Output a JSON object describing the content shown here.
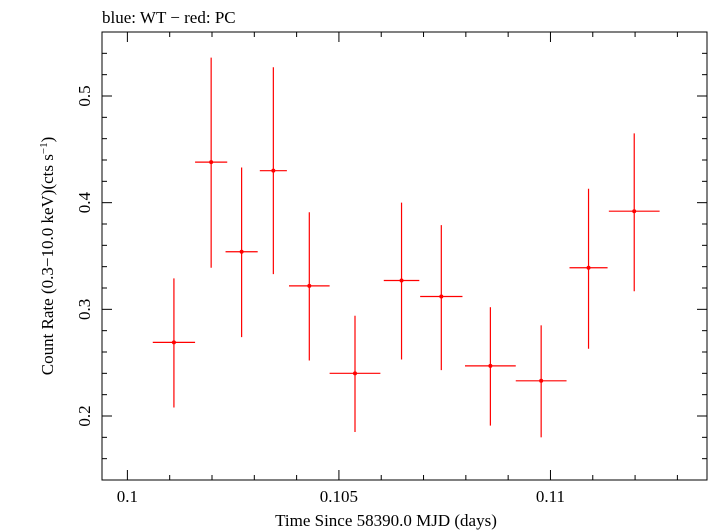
{
  "chart_data": {
    "type": "scatter",
    "title": "blue: WT − red: PC",
    "xlabel": "Time Since 58390.0 MJD (days)",
    "ylabel_parts": {
      "main": "Count Rate (0.3−10.0 keV)(cts s",
      "sup": "−1",
      "close": ")"
    },
    "xlim": [
      0.0994,
      0.1137
    ],
    "ylim": [
      0.14,
      0.56
    ],
    "x_ticks": [
      {
        "value": 0.1,
        "label": "0.1"
      },
      {
        "value": 0.105,
        "label": "0.105"
      },
      {
        "value": 0.11,
        "label": "0.11"
      }
    ],
    "y_ticks": [
      {
        "value": 0.2,
        "label": "0.2"
      },
      {
        "value": 0.3,
        "label": "0.3"
      },
      {
        "value": 0.4,
        "label": "0.4"
      },
      {
        "value": 0.5,
        "label": "0.5"
      }
    ],
    "series": [
      {
        "color": "#ff0000",
        "points": [
          {
            "x": 0.1011,
            "xerr": 0.0005,
            "y": 0.269,
            "ylo": 0.208,
            "yhi": 0.329
          },
          {
            "x": 0.10198,
            "xerr": 0.00038,
            "y": 0.438,
            "ylo": 0.339,
            "yhi": 0.536
          },
          {
            "x": 0.1027,
            "xerr": 0.00038,
            "y": 0.354,
            "ylo": 0.274,
            "yhi": 0.433
          },
          {
            "x": 0.10345,
            "xerr": 0.00032,
            "y": 0.43,
            "ylo": 0.333,
            "yhi": 0.527
          },
          {
            "x": 0.1043,
            "xerr": 0.00048,
            "y": 0.322,
            "ylo": 0.252,
            "yhi": 0.391
          },
          {
            "x": 0.10538,
            "xerr": 0.0006,
            "y": 0.24,
            "ylo": 0.185,
            "yhi": 0.294
          },
          {
            "x": 0.10648,
            "xerr": 0.00042,
            "y": 0.327,
            "ylo": 0.253,
            "yhi": 0.4
          },
          {
            "x": 0.10742,
            "xerr": 0.0005,
            "y": 0.312,
            "ylo": 0.243,
            "yhi": 0.379
          },
          {
            "x": 0.10858,
            "xerr": 0.0006,
            "y": 0.247,
            "ylo": 0.191,
            "yhi": 0.302
          },
          {
            "x": 0.10978,
            "xerr": 0.0006,
            "y": 0.233,
            "ylo": 0.18,
            "yhi": 0.285
          },
          {
            "x": 0.1109,
            "xerr": 0.00045,
            "y": 0.339,
            "ylo": 0.263,
            "yhi": 0.413
          },
          {
            "x": 0.11198,
            "xerr": 0.0006,
            "y": 0.392,
            "ylo": 0.317,
            "yhi": 0.465
          }
        ]
      }
    ],
    "grid": false,
    "legend": "none"
  }
}
